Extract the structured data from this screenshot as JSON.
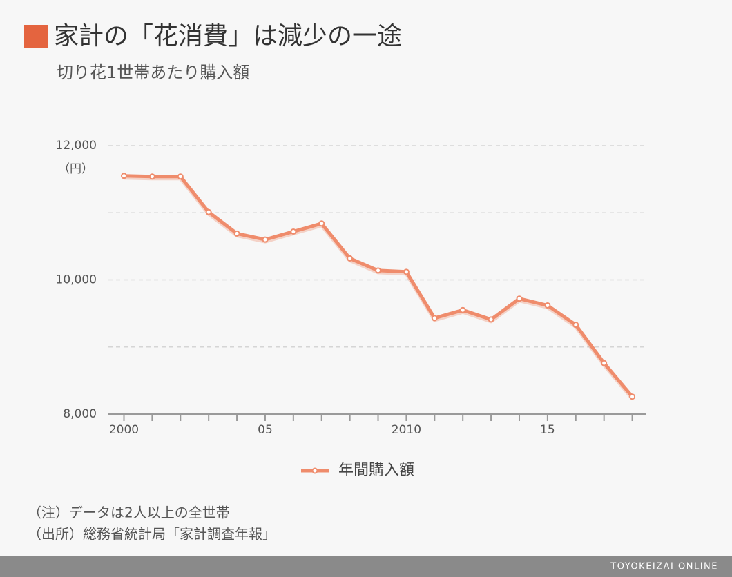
{
  "chart_data": {
    "type": "line",
    "title": "家計の「花消費」は減少の一途",
    "subtitle": "切り花1世帯あたり購入額",
    "y_unit": "（円）",
    "x": [
      2000,
      2001,
      2002,
      2003,
      2004,
      2005,
      2006,
      2007,
      2008,
      2009,
      2010,
      2011,
      2012,
      2013,
      2014,
      2015,
      2016,
      2017,
      2018
    ],
    "series": [
      {
        "name": "年間購入額",
        "color": "#ef8c6c",
        "values": [
          11550,
          11540,
          11540,
          11010,
          10690,
          10600,
          10720,
          10840,
          10320,
          10140,
          10120,
          9430,
          9550,
          9410,
          9720,
          9620,
          9330,
          8760,
          8260
        ]
      }
    ],
    "xlim": [
      1999.45,
      2018.5
    ],
    "xticks": [
      2000,
      {
        "value": 2005,
        "label": "05"
      },
      2010,
      {
        "value": 2015,
        "label": "15"
      }
    ],
    "xminor_ticks": [
      2001,
      2002,
      2003,
      2004,
      2006,
      2007,
      2008,
      2009,
      2011,
      2012,
      2013,
      2014,
      2016,
      2017,
      2018
    ],
    "ylim": [
      8000,
      12000
    ],
    "yticks": [
      {
        "value": 8000,
        "label": "8,000"
      },
      {
        "value": 10000,
        "label": "10,000"
      },
      {
        "value": 12000,
        "label": "12,000"
      }
    ],
    "yminor_ticks": [
      9000,
      11000
    ],
    "grid": true,
    "legend": "bottom",
    "notes": [
      "（注）データは2人以上の全世帯",
      "（出所）総務省統計局「家計調査年報」"
    ],
    "footer": "TOYOKEIZAI ONLINE"
  }
}
